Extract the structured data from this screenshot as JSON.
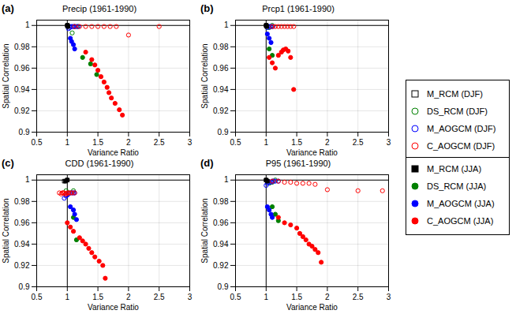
{
  "chart_data": [
    {
      "type": "scatter",
      "title": "Precip (1961-1990)",
      "annotations": [
        "(a)"
      ],
      "x_label": "Variance Ratio",
      "y_label": "Spatial Correlation",
      "xlim": [
        0.5,
        3.0
      ],
      "ylim": [
        0.9,
        1.005
      ],
      "xticks": [
        0.5,
        1,
        1.5,
        2,
        2.5,
        3
      ],
      "yticks": [
        0.9,
        0.92,
        0.94,
        0.96,
        0.98,
        1
      ],
      "vline_x": 1.0,
      "hline_y": 1.0,
      "grid": true,
      "legend": "right",
      "series": [
        {
          "name": "M_RCM (DJF)",
          "color": "black",
          "marker": "hollow-square",
          "x": [
            1.0,
            1.005
          ],
          "values": [
            1.0,
            1.0
          ]
        },
        {
          "name": "DS_RCM (DJF)",
          "color": "green",
          "marker": "hollow-circle",
          "x": [
            1.08,
            1.12,
            1.17
          ],
          "values": [
            0.993,
            0.999,
            0.999
          ]
        },
        {
          "name": "M_AOGCM (DJF)",
          "color": "blue",
          "marker": "hollow-circle",
          "x": [
            1.02,
            1.04,
            1.06,
            1.08,
            1.1,
            1.12,
            1.15,
            1.18
          ],
          "values": [
            0.997,
            0.998,
            0.999,
            0.999,
            0.999,
            0.999,
            0.999,
            0.999
          ]
        },
        {
          "name": "C_AOGCM (DJF)",
          "color": "red",
          "marker": "hollow-circle",
          "x": [
            1.12,
            1.2,
            1.3,
            1.4,
            1.5,
            1.6,
            1.7,
            1.8,
            2.0,
            2.5
          ],
          "values": [
            0.999,
            0.999,
            0.999,
            0.999,
            0.999,
            0.999,
            0.999,
            0.999,
            0.991,
            0.999
          ]
        },
        {
          "name": "M_RCM (JJA)",
          "color": "black",
          "marker": "filled-square",
          "x": [
            1.0,
            1.01
          ],
          "values": [
            1.0,
            0.999
          ]
        },
        {
          "name": "DS_RCM (JJA)",
          "color": "green",
          "marker": "filled-circle",
          "x": [
            1.25,
            1.38,
            1.48
          ],
          "values": [
            0.97,
            0.964,
            0.954
          ]
        },
        {
          "name": "M_AOGCM (JJA)",
          "color": "blue",
          "marker": "filled-circle",
          "x": [
            1.05,
            1.07,
            1.1,
            1.12
          ],
          "values": [
            0.988,
            0.985,
            0.982,
            0.978
          ]
        },
        {
          "name": "C_AOGCM (JJA)",
          "color": "red",
          "marker": "filled-circle",
          "x": [
            1.3,
            1.4,
            1.45,
            1.5,
            1.55,
            1.6,
            1.65,
            1.68,
            1.72,
            1.78,
            1.85,
            1.9
          ],
          "values": [
            0.975,
            0.968,
            0.963,
            0.958,
            0.952,
            0.947,
            0.942,
            0.937,
            0.932,
            0.927,
            0.921,
            0.916
          ]
        }
      ]
    },
    {
      "type": "scatter",
      "title": "Prcp1 (1961-1990)",
      "annotations": [
        "(b)"
      ],
      "x_label": "Variance Ratio",
      "y_label": "Spatial Correlation",
      "xlim": [
        0.5,
        3.0
      ],
      "ylim": [
        0.9,
        1.005
      ],
      "xticks": [
        0.5,
        1,
        1.5,
        2,
        2.5,
        3
      ],
      "yticks": [
        0.9,
        0.92,
        0.94,
        0.96,
        0.98,
        1
      ],
      "vline_x": 1.0,
      "hline_y": 1.0,
      "grid": true,
      "legend": "right",
      "series": [
        {
          "name": "M_RCM (DJF)",
          "color": "black",
          "marker": "hollow-square",
          "x": [
            1.0,
            1.005
          ],
          "values": [
            1.0,
            1.0
          ]
        },
        {
          "name": "DS_RCM (DJF)",
          "color": "green",
          "marker": "hollow-circle",
          "x": [
            1.05,
            1.1
          ],
          "values": [
            0.998,
            1.0
          ]
        },
        {
          "name": "M_AOGCM (DJF)",
          "color": "blue",
          "marker": "hollow-circle",
          "x": [
            1.02,
            1.05,
            1.07,
            1.09,
            1.11
          ],
          "values": [
            0.998,
            0.999,
            0.999,
            0.999,
            0.999
          ]
        },
        {
          "name": "C_AOGCM (DJF)",
          "color": "red",
          "marker": "hollow-circle",
          "x": [
            1.1,
            1.15,
            1.2,
            1.25,
            1.3,
            1.35,
            1.4,
            1.45
          ],
          "values": [
            0.999,
            0.999,
            0.999,
            0.999,
            0.999,
            0.999,
            0.999,
            0.999
          ]
        },
        {
          "name": "M_RCM (JJA)",
          "color": "black",
          "marker": "filled-square",
          "x": [
            1.0,
            1.01
          ],
          "values": [
            1.0,
            0.999
          ]
        },
        {
          "name": "DS_RCM (JJA)",
          "color": "green",
          "marker": "filled-circle",
          "x": [
            1.05,
            1.1
          ],
          "values": [
            0.978,
            0.972
          ]
        },
        {
          "name": "M_AOGCM (JJA)",
          "color": "blue",
          "marker": "filled-circle",
          "x": [
            1.02,
            1.05,
            1.08
          ],
          "values": [
            0.992,
            0.988,
            0.984
          ]
        },
        {
          "name": "C_AOGCM (JJA)",
          "color": "red",
          "marker": "filled-circle",
          "x": [
            1.05,
            1.1,
            1.15,
            1.2,
            1.25,
            1.28,
            1.32,
            1.36,
            1.4,
            1.45
          ],
          "values": [
            0.97,
            0.965,
            0.96,
            0.972,
            0.975,
            0.977,
            0.978,
            0.976,
            0.97,
            0.94
          ]
        }
      ]
    },
    {
      "type": "scatter",
      "title": "CDD (1961-1990)",
      "annotations": [
        "(c)"
      ],
      "x_label": "Variance Ratio",
      "y_label": "Spatial Correlation",
      "xlim": [
        0.5,
        3.0
      ],
      "ylim": [
        0.9,
        1.005
      ],
      "xticks": [
        0.5,
        1,
        1.5,
        2,
        2.5,
        3
      ],
      "yticks": [
        0.9,
        0.92,
        0.94,
        0.96,
        0.98,
        1
      ],
      "vline_x": 1.0,
      "hline_y": 1.0,
      "grid": true,
      "legend": "right",
      "series": [
        {
          "name": "M_RCM (DJF)",
          "color": "black",
          "marker": "hollow-square",
          "x": [
            0.95,
            1.0
          ],
          "values": [
            0.999,
            1.0
          ]
        },
        {
          "name": "DS_RCM (DJF)",
          "color": "green",
          "marker": "hollow-circle",
          "x": [
            0.98,
            1.02,
            1.1
          ],
          "values": [
            0.99,
            0.988,
            0.99
          ]
        },
        {
          "name": "M_AOGCM (DJF)",
          "color": "blue",
          "marker": "hollow-circle",
          "x": [
            0.95,
            0.98,
            1.0,
            1.02,
            1.05,
            1.08,
            1.1,
            1.12
          ],
          "values": [
            0.983,
            0.985,
            0.986,
            0.987,
            0.988,
            0.988,
            0.988,
            0.988
          ]
        },
        {
          "name": "C_AOGCM (DJF)",
          "color": "red",
          "marker": "hollow-circle",
          "x": [
            0.87,
            0.9,
            0.92,
            0.93,
            0.95,
            0.97,
            0.98,
            1.0,
            1.02,
            1.05,
            1.08,
            1.12
          ],
          "values": [
            0.988,
            0.987,
            0.988,
            0.988,
            0.988,
            0.987,
            0.987,
            0.988,
            0.988,
            0.988,
            0.988,
            0.988
          ]
        },
        {
          "name": "M_RCM (JJA)",
          "color": "black",
          "marker": "filled-square",
          "x": [
            0.97,
            1.0
          ],
          "values": [
            0.999,
            1.0
          ]
        },
        {
          "name": "DS_RCM (JJA)",
          "color": "green",
          "marker": "filled-circle",
          "x": [
            1.1,
            1.15
          ],
          "values": [
            0.965,
            0.944
          ]
        },
        {
          "name": "M_AOGCM (JJA)",
          "color": "blue",
          "marker": "filled-circle",
          "x": [
            1.05,
            1.1,
            1.12,
            1.15
          ],
          "values": [
            0.975,
            0.972,
            0.968,
            0.963
          ]
        },
        {
          "name": "C_AOGCM (JJA)",
          "color": "red",
          "marker": "filled-circle",
          "x": [
            1.0,
            1.05,
            1.1,
            1.2,
            1.25,
            1.3,
            1.35,
            1.4,
            1.45,
            1.52,
            1.58,
            1.62
          ],
          "values": [
            0.96,
            0.956,
            0.952,
            0.946,
            0.943,
            0.94,
            0.936,
            0.932,
            0.928,
            0.924,
            0.92,
            0.908
          ]
        }
      ]
    },
    {
      "type": "scatter",
      "title": "P95 (1961-1990)",
      "annotations": [
        "(d)"
      ],
      "x_label": "Variance Ratio",
      "y_label": "Spatial Correlation",
      "xlim": [
        0.5,
        3.0
      ],
      "ylim": [
        0.9,
        1.005
      ],
      "xticks": [
        0.5,
        1,
        1.5,
        2,
        2.5,
        3
      ],
      "yticks": [
        0.9,
        0.92,
        0.94,
        0.96,
        0.98,
        1
      ],
      "vline_x": 1.0,
      "hline_y": 1.0,
      "grid": true,
      "legend": "right",
      "series": [
        {
          "name": "M_RCM (DJF)",
          "color": "black",
          "marker": "hollow-square",
          "x": [
            1.0,
            1.02
          ],
          "values": [
            1.0,
            0.999
          ]
        },
        {
          "name": "DS_RCM (DJF)",
          "color": "green",
          "marker": "hollow-circle",
          "x": [
            1.05,
            1.1,
            1.15
          ],
          "values": [
            0.997,
            0.998,
            1.0
          ]
        },
        {
          "name": "M_AOGCM (DJF)",
          "color": "blue",
          "marker": "hollow-circle",
          "x": [
            1.0,
            1.02,
            1.05,
            1.08,
            1.1,
            1.12,
            1.15,
            1.2
          ],
          "values": [
            0.995,
            0.997,
            0.998,
            0.998,
            0.999,
            0.999,
            0.999,
            0.999
          ]
        },
        {
          "name": "C_AOGCM (DJF)",
          "color": "red",
          "marker": "hollow-circle",
          "x": [
            1.1,
            1.2,
            1.3,
            1.4,
            1.5,
            1.6,
            1.7,
            1.8,
            2.0,
            2.5,
            2.9
          ],
          "values": [
            0.999,
            0.999,
            0.998,
            0.998,
            0.997,
            0.997,
            0.997,
            0.996,
            0.991,
            0.99,
            0.99
          ]
        },
        {
          "name": "M_RCM (JJA)",
          "color": "black",
          "marker": "filled-square",
          "x": [
            1.0,
            1.02
          ],
          "values": [
            1.0,
            0.999
          ]
        },
        {
          "name": "DS_RCM (JJA)",
          "color": "green",
          "marker": "filled-circle",
          "x": [
            1.1,
            1.15,
            1.2
          ],
          "values": [
            0.975,
            0.968,
            0.962
          ]
        },
        {
          "name": "M_AOGCM (JJA)",
          "color": "blue",
          "marker": "filled-circle",
          "x": [
            1.02,
            1.05,
            1.08,
            1.1
          ],
          "values": [
            0.975,
            0.972,
            0.968,
            0.965
          ]
        },
        {
          "name": "C_AOGCM (JJA)",
          "color": "red",
          "marker": "filled-circle",
          "x": [
            1.2,
            1.3,
            1.4,
            1.5,
            1.55,
            1.6,
            1.65,
            1.7,
            1.75,
            1.8,
            1.85,
            1.9
          ],
          "values": [
            0.965,
            0.96,
            0.958,
            0.955,
            0.95,
            0.947,
            0.944,
            0.94,
            0.938,
            0.935,
            0.932,
            0.923
          ]
        }
      ]
    }
  ]
}
